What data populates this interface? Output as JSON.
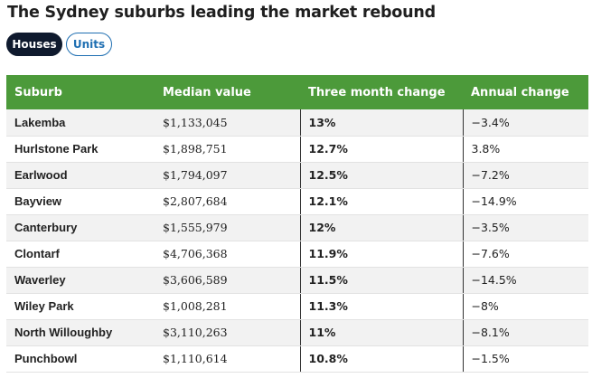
{
  "title": "The Sydney suburbs leading the market rebound",
  "tabs": [
    {
      "label": "Houses",
      "active": true
    },
    {
      "label": "Units",
      "active": false
    }
  ],
  "table": {
    "headers": [
      "Suburb",
      "Median value",
      "Three month change",
      "Annual change"
    ],
    "rows": [
      {
        "suburb": "Lakemba",
        "median": "$1,133,045",
        "three": "13%",
        "annual": "−3.4%"
      },
      {
        "suburb": "Hurlstone Park",
        "median": "$1,898,751",
        "three": "12.7%",
        "annual": "3.8%"
      },
      {
        "suburb": "Earlwood",
        "median": "$1,794,097",
        "three": "12.5%",
        "annual": "−7.2%"
      },
      {
        "suburb": "Bayview",
        "median": "$2,807,684",
        "three": "12.1%",
        "annual": "−14.9%"
      },
      {
        "suburb": "Canterbury",
        "median": "$1,555,979",
        "three": "12%",
        "annual": "−3.5%"
      },
      {
        "suburb": "Clontarf",
        "median": "$4,706,368",
        "three": "11.9%",
        "annual": "−7.6%"
      },
      {
        "suburb": "Waverley",
        "median": "$3,606,589",
        "three": "11.5%",
        "annual": "−14.5%"
      },
      {
        "suburb": "Wiley Park",
        "median": "$1,008,281",
        "three": "11.3%",
        "annual": "−8%"
      },
      {
        "suburb": "North Willoughby",
        "median": "$3,110,263",
        "three": "11%",
        "annual": "−8.1%"
      },
      {
        "suburb": "Punchbowl",
        "median": "$1,110,614",
        "three": "10.8%",
        "annual": "−1.5%"
      }
    ]
  },
  "colors": {
    "header_green": "#4c9a3a",
    "active_tab": "#0f1a2e",
    "inactive_tab_border": "#1f6fb2"
  }
}
